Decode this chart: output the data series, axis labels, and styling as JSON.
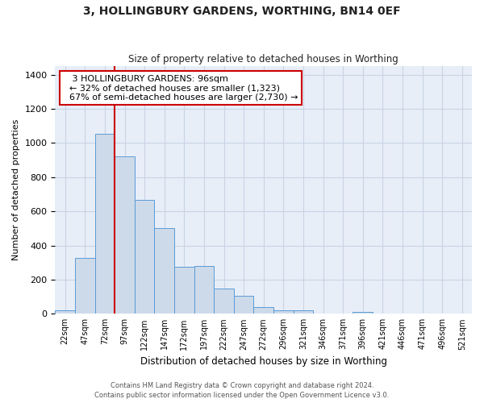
{
  "title": "3, HOLLINGBURY GARDENS, WORTHING, BN14 0EF",
  "subtitle": "Size of property relative to detached houses in Worthing",
  "xlabel": "Distribution of detached houses by size in Worthing",
  "ylabel": "Number of detached properties",
  "categories": [
    "22sqm",
    "47sqm",
    "72sqm",
    "97sqm",
    "122sqm",
    "147sqm",
    "172sqm",
    "197sqm",
    "222sqm",
    "247sqm",
    "272sqm",
    "296sqm",
    "321sqm",
    "346sqm",
    "371sqm",
    "396sqm",
    "421sqm",
    "446sqm",
    "471sqm",
    "496sqm",
    "521sqm"
  ],
  "values": [
    20,
    325,
    1055,
    920,
    665,
    500,
    275,
    280,
    150,
    105,
    40,
    22,
    22,
    0,
    0,
    12,
    0,
    0,
    0,
    0,
    0
  ],
  "bar_color": "#cddaea",
  "bar_edge_color": "#5b9bd5",
  "property_line_label": "3 HOLLINGBURY GARDENS: 96sqm",
  "annotation_line1": "← 32% of detached houses are smaller (1,323)",
  "annotation_line2": "67% of semi-detached houses are larger (2,730) →",
  "annotation_box_color": "#ffffff",
  "annotation_box_edge_color": "#cc0000",
  "property_line_color": "#cc0000",
  "ylim": [
    0,
    1450
  ],
  "yticks": [
    0,
    200,
    400,
    600,
    800,
    1000,
    1200,
    1400
  ],
  "grid_color": "#c8d4e4",
  "bg_color": "#e8eef8",
  "footer_line1": "Contains HM Land Registry data © Crown copyright and database right 2024.",
  "footer_line2": "Contains public sector information licensed under the Open Government Licence v3.0."
}
